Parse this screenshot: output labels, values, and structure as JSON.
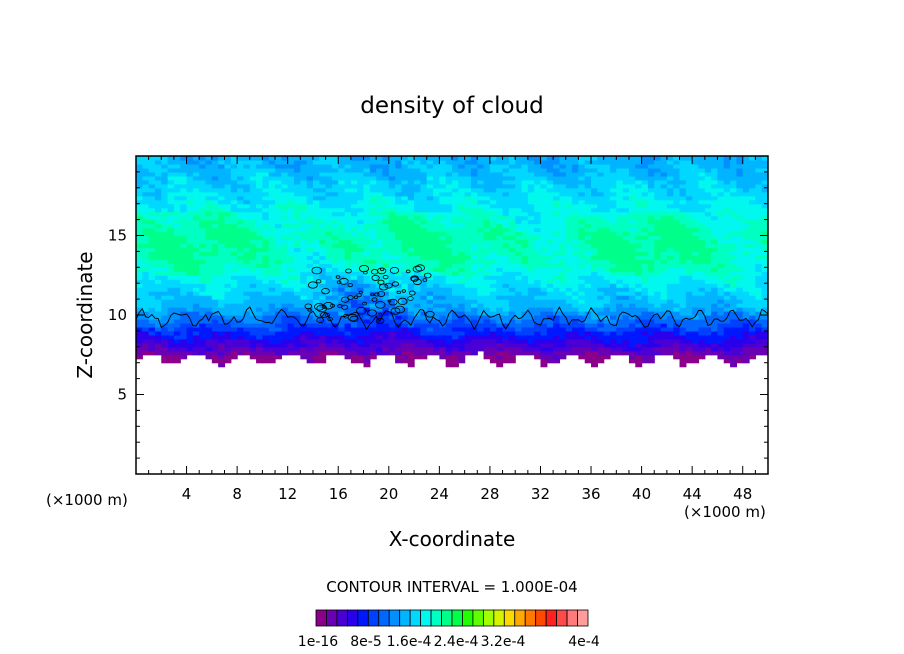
{
  "chart_data": {
    "type": "heatmap",
    "title": "density of cloud",
    "xlabel": "X-coordinate",
    "ylabel": "Z-coordinate",
    "x_unit_left": "(×1000 m)",
    "x_unit_right": "(×1000 m)",
    "xlim": [
      0,
      50
    ],
    "ylim": [
      0,
      20
    ],
    "x_ticks": [
      4,
      8,
      12,
      16,
      20,
      24,
      28,
      32,
      36,
      40,
      44,
      48
    ],
    "y_ticks": [
      5,
      10,
      15
    ],
    "contour_interval_text": "CONTOUR INTERVAL = 1.000E-04",
    "colorbar_labels": [
      "1e-16",
      "8e-5",
      "1.6e-4",
      "2.4e-4",
      "3.2e-4",
      "4e-4"
    ],
    "colorbar_colors": [
      "#8a008a",
      "#6a00b4",
      "#4a00d4",
      "#2a00ec",
      "#0018ff",
      "#0040ff",
      "#0068ff",
      "#0090ff",
      "#00b4ff",
      "#00d8ff",
      "#00f8ee",
      "#00ffc0",
      "#00ff8a",
      "#00ff48",
      "#20ff00",
      "#60ff00",
      "#a0ff00",
      "#d4f400",
      "#ffd800",
      "#ffa800",
      "#ff7800",
      "#ff4800",
      "#ff2020",
      "#ff4a4a",
      "#ff7a7a",
      "#ff9c9c"
    ],
    "field_summary": {
      "cloud_base_km": 7.2,
      "contour_line_level_km": 9.8,
      "cloud_top_km": 20,
      "high_density_band_km": [
        12.5,
        16.5
      ]
    },
    "vertical_profile": [
      {
        "z": 7.2,
        "level": 0
      },
      {
        "z": 8.0,
        "level": 2
      },
      {
        "z": 8.8,
        "level": 4
      },
      {
        "z": 9.6,
        "level": 6
      },
      {
        "z": 10.5,
        "level": 8
      },
      {
        "z": 11.5,
        "level": 9
      },
      {
        "z": 12.5,
        "level": 10
      },
      {
        "z": 13.5,
        "level": 11
      },
      {
        "z": 15.0,
        "level": 11
      },
      {
        "z": 16.5,
        "level": 10
      },
      {
        "z": 18.0,
        "level": 9
      },
      {
        "z": 19.5,
        "level": 8
      }
    ]
  }
}
